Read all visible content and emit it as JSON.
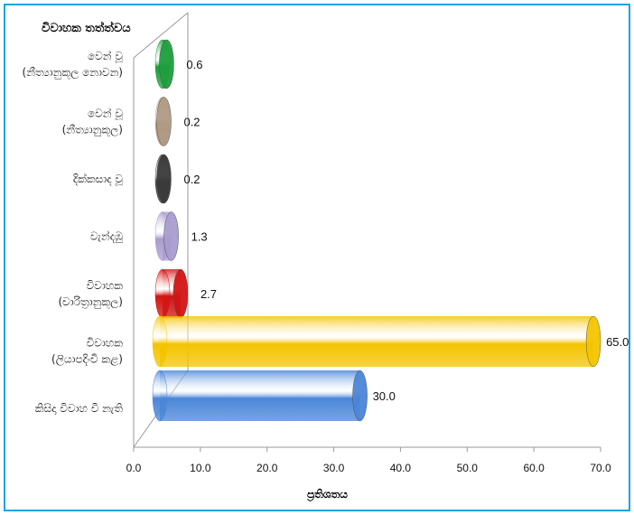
{
  "chart_data": {
    "type": "bar",
    "orientation": "horizontal",
    "style": "3d-cylinder",
    "ylabel": "විවාහක තත්ත්වය",
    "xlabel": "ප්‍රතිශතය",
    "xlim": [
      0,
      70
    ],
    "xticks": [
      "0.0",
      "10.0",
      "20.0",
      "30.0",
      "40.0",
      "50.0",
      "60.0",
      "70.0"
    ],
    "categories": [
      [
        "වෙන් වූ",
        "(නීත්‍යානුකූල නොවන)"
      ],
      [
        "වෙන් වූ",
        "(නීත්‍යානුකූල)"
      ],
      [
        "දික්කසාද වූ"
      ],
      [
        "වැන්දඹු"
      ],
      [
        "විවාහක",
        "(චාරිත්‍රානුකූල)"
      ],
      [
        "විවාහක",
        "(ලියාපදිංචි කළ)"
      ],
      [
        "කිසිදා විවාහ වී නැති"
      ]
    ],
    "values": [
      0.6,
      0.2,
      0.2,
      1.3,
      2.7,
      65.0,
      30.0
    ],
    "value_labels": [
      "0.6",
      "0.2",
      "0.2",
      "1.3",
      "2.7",
      "65.0",
      "30.0"
    ],
    "colors": [
      "#1f9e3e",
      "#b09a84",
      "#3a3a3a",
      "#a99ccf",
      "#d21414",
      "#f4c400",
      "#4a86d8"
    ],
    "grid": false,
    "legend": "none"
  }
}
